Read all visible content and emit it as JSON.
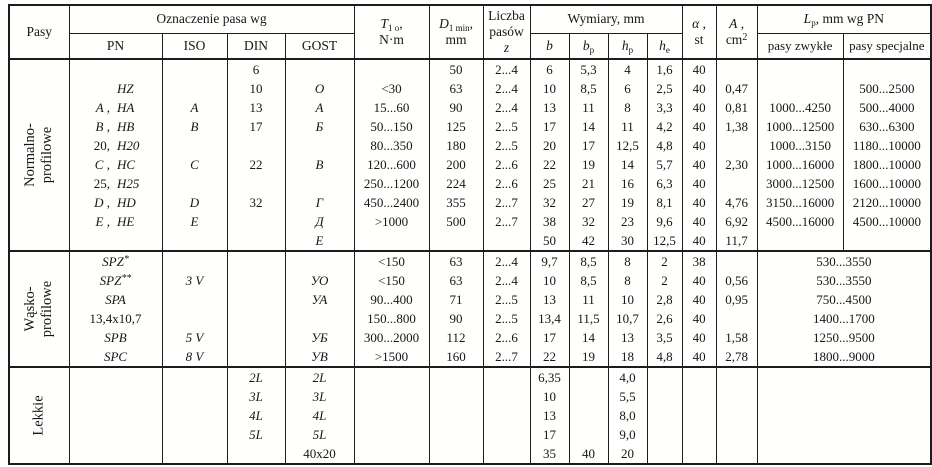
{
  "colors": {
    "background": "#fffffd",
    "text": "#161616",
    "border": "#1c1c1c"
  },
  "header": {
    "pasy": "Pasy",
    "oznaczenie": "Oznaczenie pasa wg",
    "sub_designation": [
      "PN",
      "ISO",
      "DIN",
      "GOST"
    ],
    "t": {
      "sym": "T",
      "sub": "1 o",
      "tail": ",",
      "unit": "N·m"
    },
    "d": {
      "sym": "D",
      "sub": "1 min",
      "tail": ",",
      "unit": "mm"
    },
    "liczba": {
      "line1": "Liczba",
      "line2": "pasów",
      "sym": "z"
    },
    "wymiary": "Wymiary, mm",
    "dims": [
      {
        "sym": "b",
        "sub": ""
      },
      {
        "sym": "b",
        "sub": "p"
      },
      {
        "sym": "h",
        "sub": "p"
      },
      {
        "sym": "h",
        "sub": "e"
      }
    ],
    "alpha": {
      "sym": "α",
      "tail": " ,",
      "unit": "st"
    },
    "area": {
      "sym": "A",
      "tail": " ,",
      "unit_base": "cm",
      "unit_sup": "2"
    },
    "lp": {
      "sym": "L",
      "sub": "p",
      "tail": ", mm  wg PN"
    },
    "lp_sub": [
      "pasy zwykłe",
      "pasy specjalne"
    ]
  },
  "sections": [
    {
      "id": "normalno-profilowe",
      "label_lines": [
        "Normalno-",
        "profilowe"
      ],
      "lp_merged": false,
      "rows": [
        {
          "din": "6",
          "d": "50",
          "z": "2...4",
          "b": "6",
          "bp": "5,3",
          "hp": "4",
          "he": "1,6",
          "al": "40"
        },
        {
          "pn": [
            "",
            "HZ"
          ],
          "din": "10",
          "gost": "О",
          "t": "<30",
          "d": "63",
          "z": "2...4",
          "b": "10",
          "bp": "8,5",
          "hp": "6",
          "he": "2,5",
          "al": "40",
          "a": "0,47",
          "sp": "500...2500"
        },
        {
          "pn": [
            "A ,",
            "HA"
          ],
          "iso": "A",
          "din": "13",
          "gost": "А",
          "t": "15...60",
          "d": "90",
          "z": "2...4",
          "b": "13",
          "bp": "11",
          "hp": "8",
          "he": "3,3",
          "al": "40",
          "a": "0,81",
          "zw": "1000...4250",
          "sp": "500...4000"
        },
        {
          "pn": [
            "B ,",
            "HB"
          ],
          "iso": "B",
          "din": "17",
          "gost": "Б",
          "t": "50...150",
          "d": "125",
          "z": "2...5",
          "b": "17",
          "bp": "14",
          "hp": "11",
          "he": "4,2",
          "al": "40",
          "a": "1,38",
          "zw": "1000...12500",
          "sp": "630...6300"
        },
        {
          "pn": [
            "20,",
            "H20"
          ],
          "t": "80...350",
          "d": "180",
          "z": "2...5",
          "b": "20",
          "bp": "17",
          "hp": "12,5",
          "he": "4,8",
          "al": "40",
          "zw": "1000...3150",
          "sp": "1180...10000"
        },
        {
          "pn": [
            "C ,",
            "HC"
          ],
          "iso": "C",
          "din": "22",
          "gost": "В",
          "t": "120...600",
          "d": "200",
          "z": "2...6",
          "b": "22",
          "bp": "19",
          "hp": "14",
          "he": "5,7",
          "al": "40",
          "a": "2,30",
          "zw": "1000...16000",
          "sp": "1800...10000"
        },
        {
          "pn": [
            "25,",
            "H25"
          ],
          "t": "250...1200",
          "d": "224",
          "z": "2...6",
          "b": "25",
          "bp": "21",
          "hp": "16",
          "he": "6,3",
          "al": "40",
          "zw": "3000...12500",
          "sp": "1600...10000"
        },
        {
          "pn": [
            "D ,",
            "HD"
          ],
          "iso": "D",
          "din": "32",
          "gost": "Г",
          "t": "450...2400",
          "d": "355",
          "z": "2...7",
          "b": "32",
          "bp": "27",
          "hp": "19",
          "he": "8,1",
          "al": "40",
          "a": "4,76",
          "zw": "3150...16000",
          "sp": "2120...10000"
        },
        {
          "pn": [
            "E ,",
            "HE"
          ],
          "iso": "E",
          "gost": "Д",
          "t": ">1000",
          "d": "500",
          "z": "2...7",
          "b": "38",
          "bp": "32",
          "hp": "23",
          "he": "9,6",
          "al": "40",
          "a": "6,92",
          "zw": "4500...16000",
          "sp": "4500...10000"
        },
        {
          "gost": "Е",
          "b": "50",
          "bp": "42",
          "hp": "30",
          "he": "12,5",
          "al": "40",
          "a": "11,7"
        }
      ]
    },
    {
      "id": "wasko-profilowe",
      "label_lines": [
        "Wąsko-",
        "profilowe"
      ],
      "lp_merged": true,
      "rows": [
        {
          "pn": "SPZ*",
          "t": "<150",
          "d": "63",
          "z": "2...4",
          "b": "9,7",
          "bp": "8,5",
          "hp": "8",
          "he": "2",
          "al": "38",
          "lp": "530...3550"
        },
        {
          "pn": "SPZ**",
          "iso": "3 V",
          "gost": "УО",
          "t": "<150",
          "d": "63",
          "z": "2...4",
          "b": "10",
          "bp": "8,5",
          "hp": "8",
          "he": "2",
          "al": "40",
          "a": "0,56",
          "lp": "530...3550"
        },
        {
          "pn": "SPA",
          "gost": "УА",
          "t": "90...400",
          "d": "71",
          "z": "2...5",
          "b": "13",
          "bp": "11",
          "hp": "10",
          "he": "2,8",
          "al": "40",
          "a": "0,95",
          "lp": "750...4500"
        },
        {
          "pn": "13,4x10,7",
          "t": "150...800",
          "d": "90",
          "z": "2...5",
          "b": "13,4",
          "bp": "11,5",
          "hp": "10,7",
          "he": "2,6",
          "al": "40",
          "lp": "1400...1700"
        },
        {
          "pn": "SPB",
          "iso": "5 V",
          "gost": "УБ",
          "t": "300...2000",
          "d": "112",
          "z": "2...6",
          "b": "17",
          "bp": "14",
          "hp": "13",
          "he": "3,5",
          "al": "40",
          "a": "1,58",
          "lp": "1250...9500"
        },
        {
          "pn": "SPC",
          "iso": "8 V",
          "gost": "УВ",
          "t": ">1500",
          "d": "160",
          "z": "2...7",
          "b": "22",
          "bp": "19",
          "hp": "18",
          "he": "4,8",
          "al": "40",
          "a": "2,78",
          "lp": "1800...9000"
        }
      ]
    },
    {
      "id": "lekkie",
      "label_lines": [
        "Lekkie"
      ],
      "lp_merged": true,
      "rows": [
        {
          "din": "2L",
          "gost": "2L",
          "b": "6,35",
          "hp": "4,0"
        },
        {
          "din": "3L",
          "gost": "3L",
          "b": "10",
          "hp": "5,5"
        },
        {
          "din": "4L",
          "gost": "4L",
          "b": "13",
          "hp": "8,0"
        },
        {
          "din": "5L",
          "gost": "5L",
          "b": "17",
          "hp": "9,0"
        },
        {
          "gost": "40x20",
          "b": "35",
          "bp": "40",
          "hp": "20"
        }
      ]
    }
  ]
}
